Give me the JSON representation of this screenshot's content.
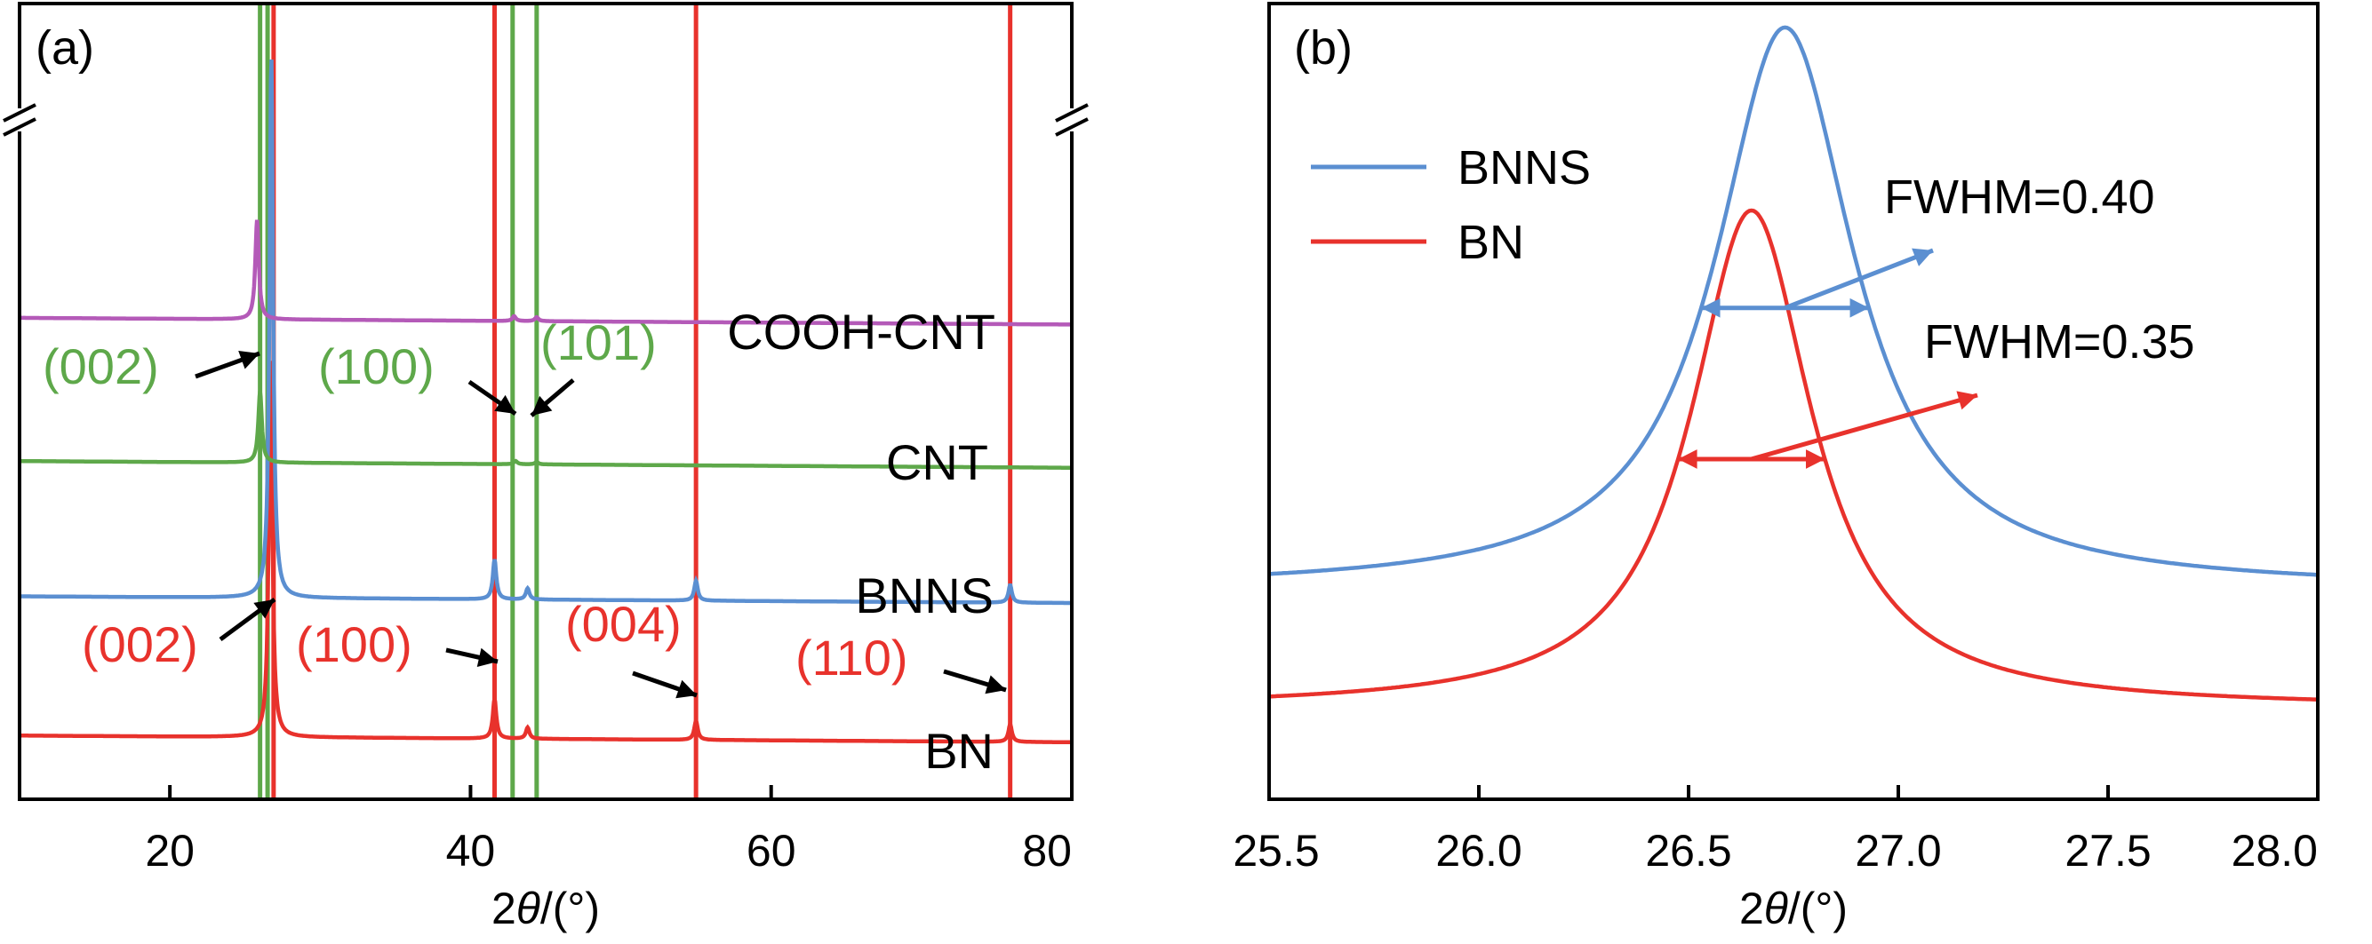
{
  "colors": {
    "bn": "#e8322c",
    "bnns": "#5b8fd1",
    "cnt": "#5ea84a",
    "cooh": "#b45ab8",
    "black": "#000000"
  },
  "chart_data": [
    {
      "panel_label": "(a)",
      "type": "line",
      "xlabel_main": "2",
      "xlabel_theta": "θ",
      "xlabel_unit": "/(°)",
      "xlim": [
        10,
        80
      ],
      "xticks": [
        20,
        40,
        60,
        80
      ],
      "tick_labels": [
        "20",
        "40",
        "60",
        "80"
      ],
      "y_axis_ticks_shown": false,
      "axis_break_marks": true,
      "series": [
        {
          "name": "BN",
          "color": "#e8322c",
          "baseline": 0.08,
          "peaks": [
            [
              26.7,
              0.48
            ],
            [
              41.6,
              0.05
            ],
            [
              43.8,
              0.014
            ],
            [
              55.0,
              0.024
            ],
            [
              75.9,
              0.022
            ]
          ]
        },
        {
          "name": "BNNS",
          "color": "#5b8fd1",
          "baseline": 0.255,
          "peaks": [
            [
              26.75,
              0.68
            ],
            [
              41.6,
              0.05
            ],
            [
              43.8,
              0.014
            ],
            [
              55.0,
              0.025
            ],
            [
              75.9,
              0.022
            ]
          ]
        },
        {
          "name": "CNT",
          "color": "#5ea84a",
          "baseline": 0.425,
          "peaks": [
            [
              26.0,
              0.09
            ],
            [
              43.0,
              0.004
            ],
            [
              44.4,
              0.003
            ]
          ]
        },
        {
          "name": "COOH-CNT",
          "color": "#b45ab8",
          "baseline": 0.605,
          "peaks": [
            [
              25.8,
              0.125
            ],
            [
              42.9,
              0.006
            ],
            [
              44.4,
              0.005
            ]
          ]
        }
      ],
      "reference_lines": [
        {
          "x": 26.0,
          "color": "#5ea84a"
        },
        {
          "x": 26.5,
          "color": "#5ea84a"
        },
        {
          "x": 42.8,
          "color": "#5ea84a"
        },
        {
          "x": 44.4,
          "color": "#5ea84a"
        },
        {
          "x": 26.9,
          "color": "#e8322c"
        },
        {
          "x": 41.6,
          "color": "#e8322c"
        },
        {
          "x": 55.0,
          "color": "#e8322c"
        },
        {
          "x": 75.9,
          "color": "#e8322c"
        }
      ],
      "trace_labels": [
        "COOH-CNT",
        "CNT",
        "BNNS",
        "BN"
      ],
      "peak_labels": [
        {
          "text": "(002)",
          "color": "#5ea84a",
          "peak_x": 26.0,
          "series": "CNT"
        },
        {
          "text": "(100)",
          "color": "#5ea84a",
          "peak_x": 42.8,
          "series": "CNT"
        },
        {
          "text": "(101)",
          "color": "#5ea84a",
          "peak_x": 44.4,
          "series": "CNT"
        },
        {
          "text": "(002)",
          "color": "#e8322c",
          "peak_x": 26.7,
          "series": "BN"
        },
        {
          "text": "(100)",
          "color": "#e8322c",
          "peak_x": 41.6,
          "series": "BN"
        },
        {
          "text": "(004)",
          "color": "#e8322c",
          "peak_x": 55.0,
          "series": "BN"
        },
        {
          "text": "(110)",
          "color": "#e8322c",
          "peak_x": 75.9,
          "series": "BN"
        }
      ]
    },
    {
      "panel_label": "(b)",
      "type": "line",
      "xlabel_main": "2",
      "xlabel_theta": "θ",
      "xlabel_unit": "/(°)",
      "xlim": [
        25.5,
        28.0
      ],
      "xticks": [
        25.5,
        26.0,
        26.5,
        27.0,
        27.5,
        28.0
      ],
      "tick_labels": [
        "25.5",
        "26.0",
        "26.5",
        "27.0",
        "27.5",
        "28.0"
      ],
      "y_axis_ticks_shown": false,
      "legend_position": "top-left",
      "legend": [
        {
          "name": "BNNS",
          "color": "#5b8fd1"
        },
        {
          "name": "BN",
          "color": "#e8322c"
        }
      ],
      "series": [
        {
          "name": "BNNS",
          "color": "#5b8fd1",
          "center": 26.73,
          "fwhm": 0.4,
          "baseline": 0.265,
          "height": 0.705,
          "fwhm_label": "FWHM=0.40"
        },
        {
          "name": "BN",
          "color": "#e8322c",
          "center": 26.65,
          "fwhm": 0.35,
          "baseline": 0.115,
          "height": 0.625,
          "fwhm_label": "FWHM=0.35"
        }
      ]
    }
  ]
}
